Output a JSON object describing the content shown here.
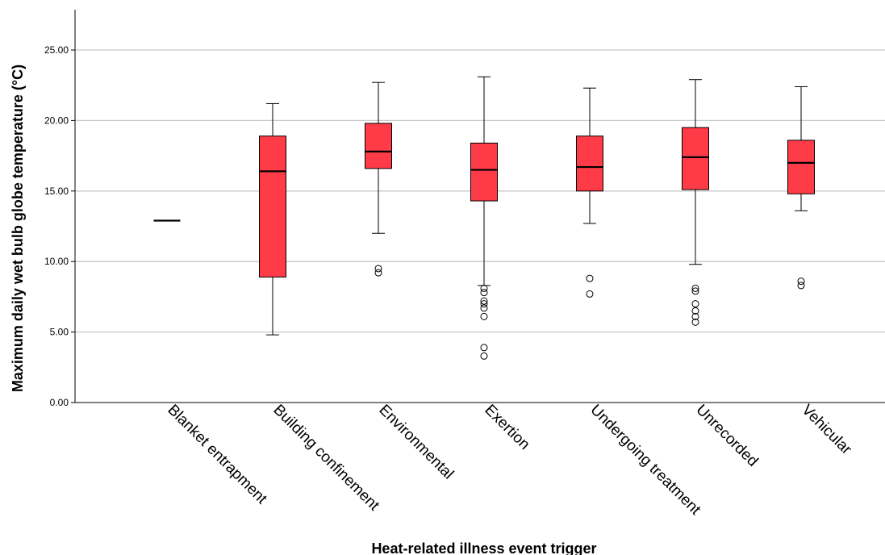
{
  "chart_data": {
    "type": "boxplot",
    "xlabel": "Heat-related illness event trigger",
    "ylabel": "Maximum daily wet bulb globe temperature (°C)",
    "ylim": [
      0,
      25
    ],
    "yticks": [
      0,
      5,
      10,
      15,
      20,
      25
    ],
    "ytick_labels": [
      "0.00",
      "5.00",
      "10.00",
      "15.00",
      "20.00",
      "25.00"
    ],
    "grid": true,
    "legend": "none",
    "box_color": "#FF3B47",
    "categories": [
      "Blanket entrapment",
      "Building confinement",
      "Environmental",
      "Exertion",
      "Undergoing treatment",
      "Unrecorded",
      "Vehicular"
    ],
    "boxes": [
      {
        "min": 12.9,
        "q1": 12.9,
        "median": 12.9,
        "q3": 12.9,
        "max": 12.9,
        "outliers": []
      },
      {
        "min": 4.8,
        "q1": 8.9,
        "median": 16.4,
        "q3": 18.9,
        "max": 21.2,
        "outliers": []
      },
      {
        "min": 12.0,
        "q1": 16.6,
        "median": 17.8,
        "q3": 19.8,
        "max": 22.7,
        "outliers": [
          9.5,
          9.2
        ]
      },
      {
        "min": 8.3,
        "q1": 14.3,
        "median": 16.5,
        "q3": 18.4,
        "max": 23.1,
        "outliers": [
          8.1,
          7.8,
          7.2,
          7.0,
          6.7,
          6.1,
          3.9,
          3.3
        ]
      },
      {
        "min": 12.7,
        "q1": 15.0,
        "median": 16.7,
        "q3": 18.9,
        "max": 22.3,
        "outliers": [
          8.8,
          7.7
        ]
      },
      {
        "min": 9.8,
        "q1": 15.1,
        "median": 17.4,
        "q3": 19.5,
        "max": 22.9,
        "outliers": [
          8.1,
          7.9,
          7.0,
          6.5,
          6.1,
          5.7
        ]
      },
      {
        "min": 13.6,
        "q1": 14.8,
        "median": 17.0,
        "q3": 18.6,
        "max": 22.4,
        "outliers": [
          8.6,
          8.3
        ]
      }
    ]
  }
}
